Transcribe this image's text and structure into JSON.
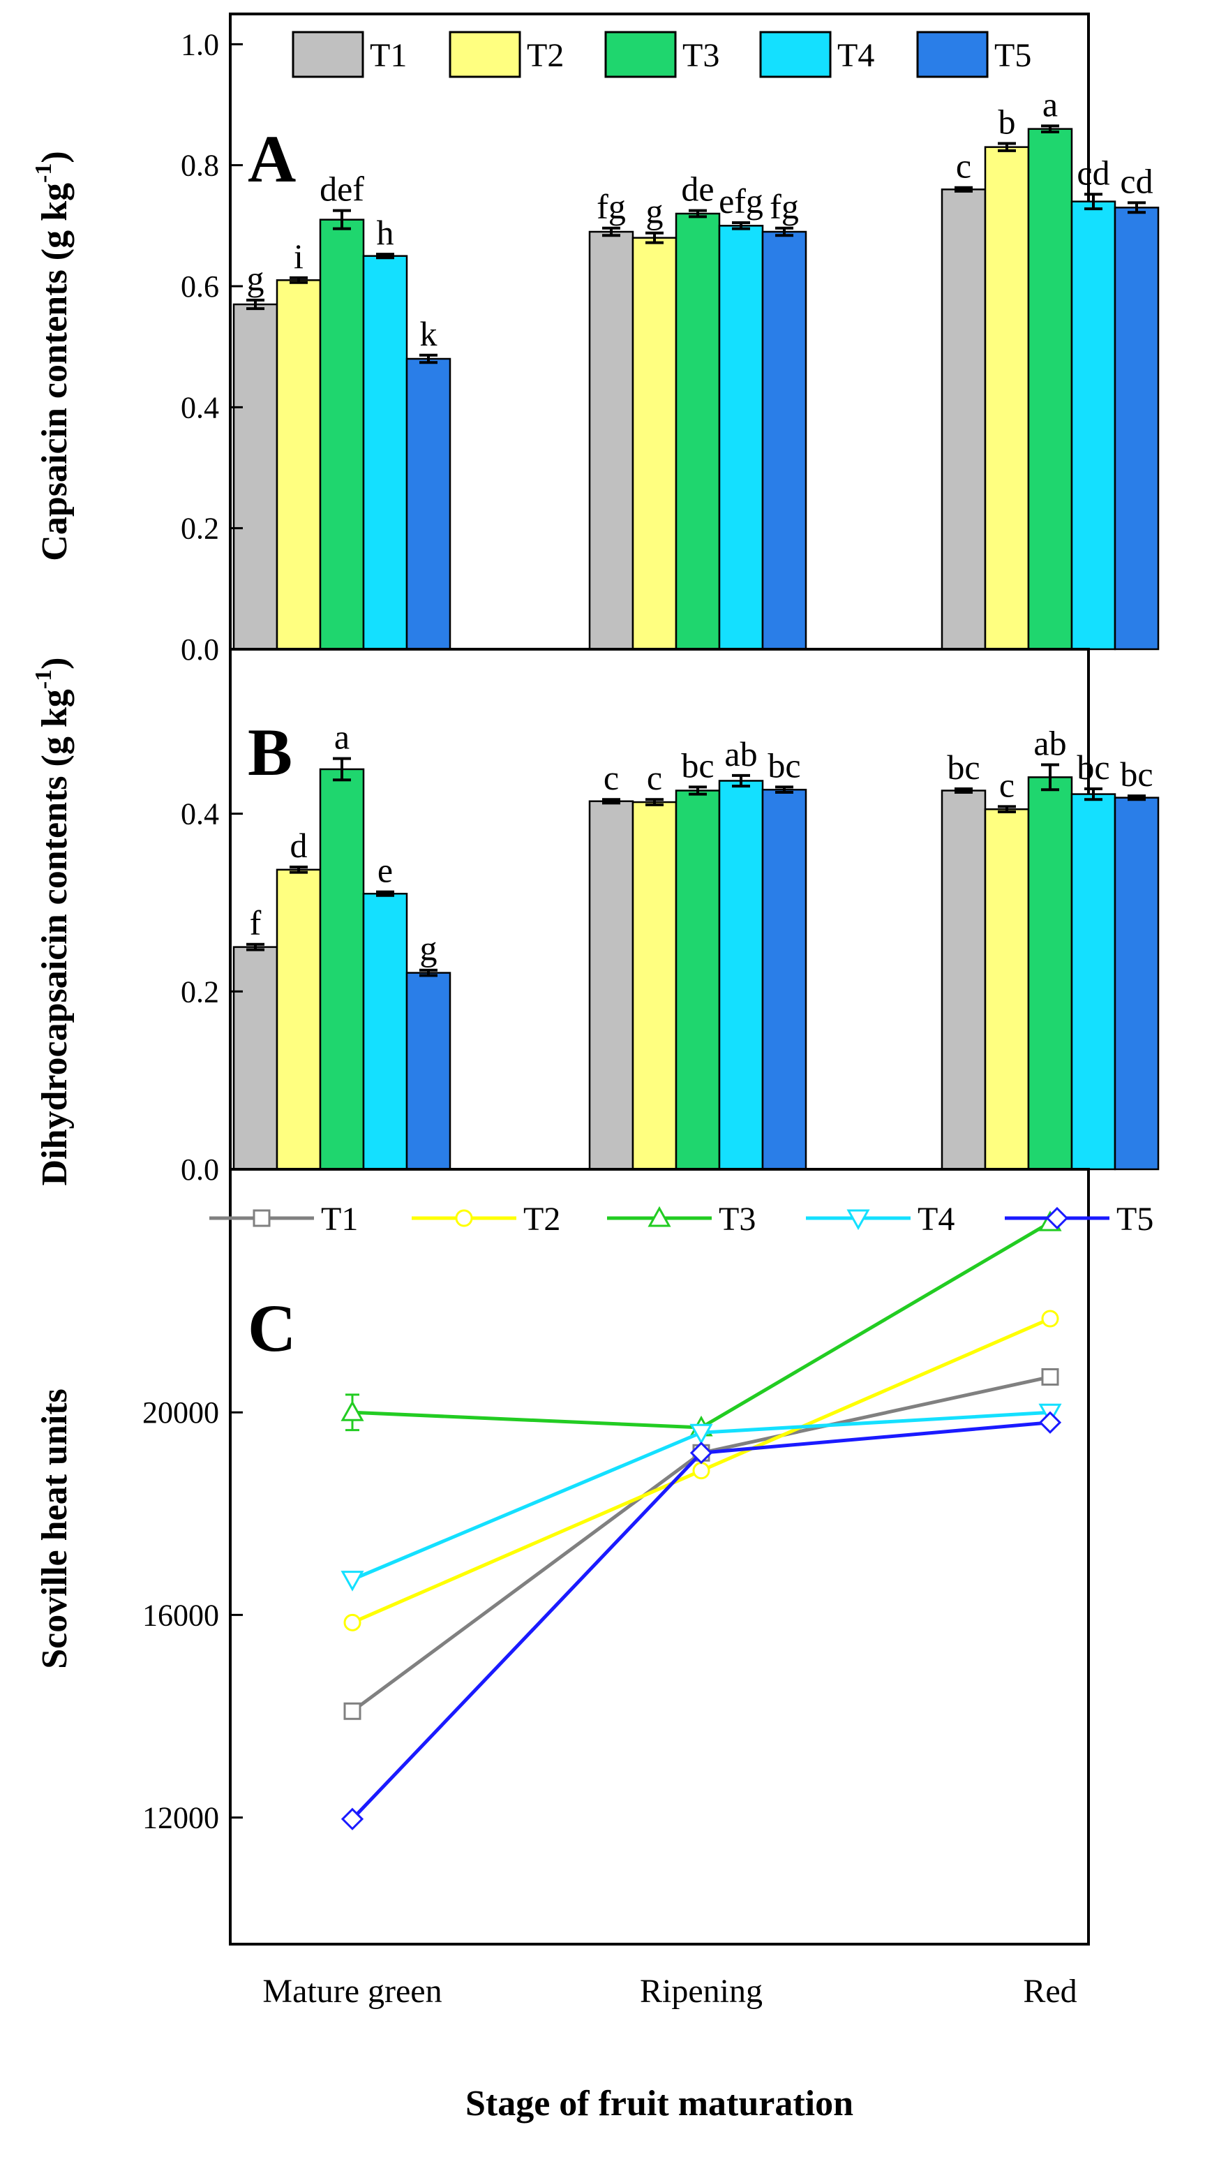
{
  "figure": {
    "xlabel": "Stage of fruit maturation",
    "categories": [
      "Mature green",
      "Ripening",
      "Red"
    ]
  },
  "chart_data": [
    {
      "type": "bar",
      "panel": "A",
      "ylabel": "Capsaicin contents (g kg",
      "ylabel_sup": "-1",
      "ylabel_close": ")",
      "ylim": [
        0,
        1.05
      ],
      "yticks": [
        0.0,
        0.2,
        0.4,
        0.6,
        0.8,
        1.0
      ],
      "ytick_labels": [
        "0.0",
        "0.2",
        "0.4",
        "0.6",
        "0.8",
        "1.0"
      ],
      "categories": [
        "Mature green",
        "Ripening",
        "Red"
      ],
      "legend_position": "top",
      "series": [
        {
          "name": "T1",
          "color": "#c0c0c0",
          "values": [
            0.57,
            0.69,
            0.76
          ],
          "errors": [
            0.007,
            0.006,
            0.003
          ],
          "labels": [
            "g",
            "fg",
            "c"
          ]
        },
        {
          "name": "T2",
          "color": "#ffff80",
          "values": [
            0.61,
            0.68,
            0.83
          ],
          "errors": [
            0.004,
            0.008,
            0.006
          ],
          "labels": [
            "i",
            "g",
            "b"
          ]
        },
        {
          "name": "T3",
          "color": "#1fd66e",
          "values": [
            0.71,
            0.72,
            0.86
          ],
          "errors": [
            0.015,
            0.005,
            0.005
          ],
          "labels": [
            "def",
            "de",
            "a"
          ]
        },
        {
          "name": "T4",
          "color": "#14e0ff",
          "values": [
            0.65,
            0.7,
            0.74
          ],
          "errors": [
            0.003,
            0.005,
            0.012
          ],
          "labels": [
            "h",
            "efg",
            "cd"
          ]
        },
        {
          "name": "T5",
          "color": "#2a7ee8",
          "values": [
            0.48,
            0.69,
            0.73
          ],
          "errors": [
            0.006,
            0.006,
            0.008
          ],
          "labels": [
            "k",
            "fg",
            "cd"
          ]
        }
      ]
    },
    {
      "type": "bar",
      "panel": "B",
      "ylabel": "Dihydrocapsaicin contents (g kg",
      "ylabel_sup": "-1",
      "ylabel_close": ")",
      "ylim": [
        0,
        0.585
      ],
      "yticks": [
        0.0,
        0.2,
        0.4
      ],
      "ytick_labels": [
        "0.0",
        "0.2",
        "0.4"
      ],
      "categories": [
        "Mature green",
        "Ripening",
        "Red"
      ],
      "series": [
        {
          "name": "T1",
          "color": "#c0c0c0",
          "values": [
            0.25,
            0.414,
            0.426
          ],
          "errors": [
            0.003,
            0.002,
            0.002
          ],
          "labels": [
            "f",
            "c",
            "bc"
          ]
        },
        {
          "name": "T2",
          "color": "#ffff80",
          "values": [
            0.337,
            0.413,
            0.405
          ],
          "errors": [
            0.003,
            0.003,
            0.003
          ],
          "labels": [
            "d",
            "c",
            "c"
          ]
        },
        {
          "name": "T3",
          "color": "#1fd66e",
          "values": [
            0.45,
            0.426,
            0.441
          ],
          "errors": [
            0.012,
            0.004,
            0.014
          ],
          "labels": [
            "a",
            "bc",
            "ab"
          ]
        },
        {
          "name": "T4",
          "color": "#14e0ff",
          "values": [
            0.31,
            0.437,
            0.422
          ],
          "errors": [
            0.002,
            0.006,
            0.006
          ],
          "labels": [
            "e",
            "ab",
            "bc"
          ]
        },
        {
          "name": "T5",
          "color": "#2a7ee8",
          "values": [
            0.221,
            0.427,
            0.418
          ],
          "errors": [
            0.003,
            0.003,
            0.002
          ],
          "labels": [
            "g",
            "bc",
            "bc"
          ]
        }
      ]
    },
    {
      "type": "line",
      "panel": "C",
      "ylabel": "Scoville heat units",
      "ylim": [
        9500,
        24800
      ],
      "yticks": [
        12000,
        16000,
        20000
      ],
      "ytick_labels": [
        "12000",
        "16000",
        "20000"
      ],
      "categories": [
        "Mature green",
        "Ripening",
        "Red"
      ],
      "legend_position": "top",
      "series": [
        {
          "name": "T1",
          "color": "#808080",
          "marker": "square",
          "values": [
            14100,
            19200,
            20700
          ],
          "errors": [
            0,
            0,
            0
          ]
        },
        {
          "name": "T2",
          "color": "#ffff00",
          "marker": "circle",
          "values": [
            15850,
            18850,
            21850
          ],
          "errors": [
            0,
            0,
            0
          ]
        },
        {
          "name": "T3",
          "color": "#22cc22",
          "marker": "triangle-up",
          "values": [
            20000,
            19700,
            23750
          ],
          "errors": [
            350,
            0,
            0
          ]
        },
        {
          "name": "T4",
          "color": "#14e0ff",
          "marker": "triangle-down",
          "values": [
            16700,
            19600,
            20000
          ],
          "errors": [
            0,
            0,
            0
          ]
        },
        {
          "name": "T5",
          "color": "#1a1aff",
          "marker": "diamond",
          "values": [
            11970,
            19200,
            19800
          ],
          "errors": [
            0,
            0,
            0
          ]
        }
      ]
    }
  ]
}
